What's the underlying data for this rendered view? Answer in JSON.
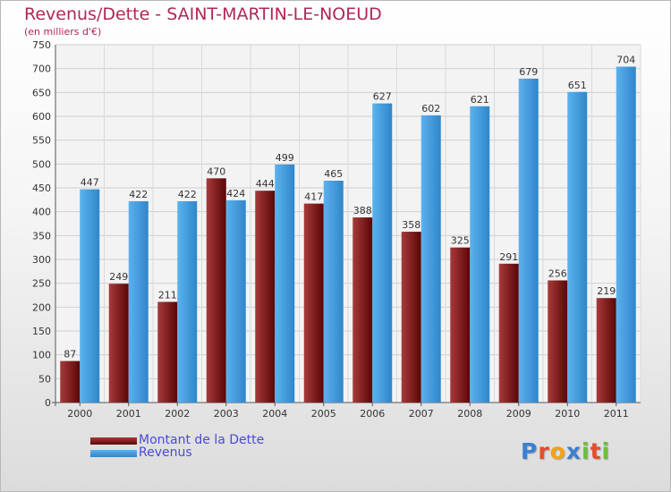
{
  "title": "Revenus/Dette - SAINT-MARTIN-LE-NOEUD",
  "subtitle": "(en milliers d'€)",
  "legend": {
    "items": [
      {
        "label": "Montant de la Dette",
        "color": "#7a1010"
      },
      {
        "label": "Revenus",
        "color": "#4ea6e6"
      }
    ]
  },
  "logo": {
    "text": "Proxiti",
    "letters": [
      {
        "ch": "P",
        "color": "#3b7fd0"
      },
      {
        "ch": "r",
        "color": "#e64b2c"
      },
      {
        "ch": "o",
        "color": "#f2a21a"
      },
      {
        "ch": "x",
        "color": "#3b7fd0"
      },
      {
        "ch": "i",
        "color": "#6bbf3a"
      },
      {
        "ch": "t",
        "color": "#e64b2c"
      },
      {
        "ch": "i",
        "color": "#6bbf3a"
      }
    ]
  },
  "chart_data": {
    "type": "bar",
    "title": "Revenus/Dette - SAINT-MARTIN-LE-NOEUD",
    "subtitle": "(en milliers d'€)",
    "xlabel": "",
    "ylabel": "",
    "categories": [
      "2000",
      "2001",
      "2002",
      "2003",
      "2004",
      "2005",
      "2006",
      "2007",
      "2008",
      "2009",
      "2010",
      "2011"
    ],
    "series": [
      {
        "name": "Montant de la Dette",
        "color": "#7a1010",
        "values": [
          87,
          249,
          211,
          470,
          444,
          417,
          388,
          358,
          325,
          291,
          256,
          219
        ]
      },
      {
        "name": "Revenus",
        "color": "#4ea6e6",
        "values": [
          447,
          422,
          422,
          424,
          499,
          465,
          627,
          602,
          621,
          679,
          651,
          704
        ]
      }
    ],
    "ylim": [
      0,
      750
    ],
    "yticks": [
      0,
      50,
      100,
      150,
      200,
      250,
      300,
      350,
      400,
      450,
      500,
      550,
      600,
      650,
      700,
      750
    ],
    "grid": true,
    "legend_position": "bottom-left"
  }
}
